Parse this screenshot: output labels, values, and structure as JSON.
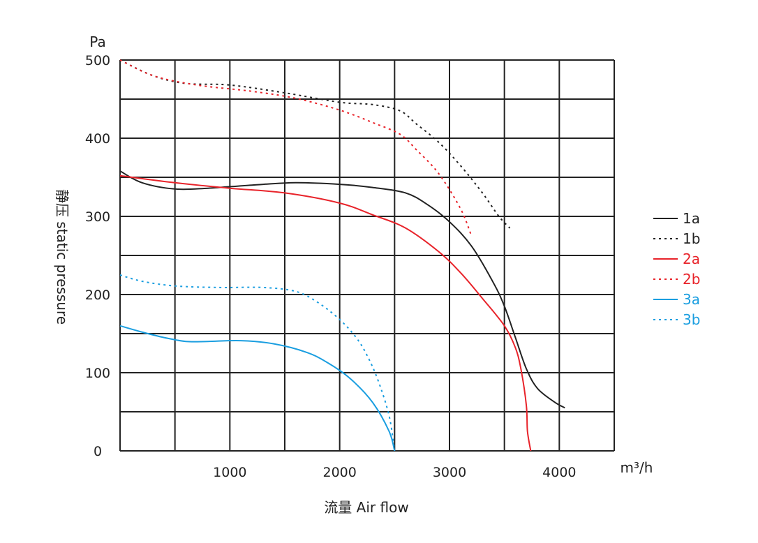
{
  "chart_data": {
    "type": "line",
    "ylabel": "静压 static pressure",
    "yunit": "Pa",
    "xlabel": "流量 Air flow",
    "xunit": "m³/h",
    "xlim": [
      0,
      4500
    ],
    "ylim": [
      0,
      500
    ],
    "xticks": [
      1000,
      2000,
      3000,
      4000
    ],
    "yticks": [
      0,
      100,
      200,
      300,
      400,
      500
    ],
    "grid": true,
    "legend_position": "right",
    "series": [
      {
        "name": "1a",
        "color": "#222222",
        "dash": "solid",
        "points": [
          [
            0,
            358
          ],
          [
            200,
            343
          ],
          [
            500,
            335
          ],
          [
            800,
            336
          ],
          [
            1200,
            340
          ],
          [
            1600,
            343
          ],
          [
            2000,
            341
          ],
          [
            2300,
            337
          ],
          [
            2600,
            330
          ],
          [
            2800,
            315
          ],
          [
            3000,
            293
          ],
          [
            3200,
            262
          ],
          [
            3400,
            215
          ],
          [
            3500,
            185
          ],
          [
            3600,
            145
          ],
          [
            3700,
            105
          ],
          [
            3800,
            80
          ],
          [
            3950,
            63
          ],
          [
            4050,
            55
          ]
        ]
      },
      {
        "name": "1b",
        "color": "#222222",
        "dash": "dotted",
        "points": [
          [
            0,
            500
          ],
          [
            300,
            480
          ],
          [
            600,
            470
          ],
          [
            1000,
            468
          ],
          [
            1500,
            458
          ],
          [
            2000,
            446
          ],
          [
            2300,
            443
          ],
          [
            2550,
            435
          ],
          [
            2700,
            418
          ],
          [
            2900,
            395
          ],
          [
            3100,
            365
          ],
          [
            3300,
            330
          ],
          [
            3450,
            300
          ],
          [
            3550,
            285
          ]
        ]
      },
      {
        "name": "2a",
        "color": "#e8232a",
        "dash": "solid",
        "points": [
          [
            0,
            352
          ],
          [
            500,
            343
          ],
          [
            1000,
            336
          ],
          [
            1500,
            330
          ],
          [
            2000,
            317
          ],
          [
            2300,
            302
          ],
          [
            2600,
            285
          ],
          [
            2900,
            255
          ],
          [
            3100,
            228
          ],
          [
            3300,
            195
          ],
          [
            3500,
            160
          ],
          [
            3600,
            132
          ],
          [
            3650,
            105
          ],
          [
            3700,
            58
          ],
          [
            3710,
            25
          ],
          [
            3740,
            0
          ]
        ]
      },
      {
        "name": "2b",
        "color": "#e8232a",
        "dash": "dotted",
        "points": [
          [
            0,
            500
          ],
          [
            300,
            480
          ],
          [
            700,
            468
          ],
          [
            1200,
            460
          ],
          [
            1600,
            451
          ],
          [
            2000,
            436
          ],
          [
            2300,
            420
          ],
          [
            2550,
            405
          ],
          [
            2700,
            385
          ],
          [
            2900,
            355
          ],
          [
            3100,
            310
          ],
          [
            3200,
            275
          ]
        ]
      },
      {
        "name": "3a",
        "color": "#1a9ee0",
        "dash": "solid",
        "points": [
          [
            0,
            160
          ],
          [
            200,
            152
          ],
          [
            400,
            145
          ],
          [
            600,
            140
          ],
          [
            800,
            140
          ],
          [
            1100,
            141
          ],
          [
            1400,
            137
          ],
          [
            1700,
            126
          ],
          [
            1900,
            112
          ],
          [
            2100,
            92
          ],
          [
            2300,
            62
          ],
          [
            2450,
            25
          ],
          [
            2500,
            0
          ]
        ]
      },
      {
        "name": "3b",
        "color": "#1a9ee0",
        "dash": "dotted",
        "points": [
          [
            0,
            225
          ],
          [
            200,
            217
          ],
          [
            500,
            211
          ],
          [
            900,
            209
          ],
          [
            1300,
            209
          ],
          [
            1600,
            204
          ],
          [
            1800,
            190
          ],
          [
            2000,
            168
          ],
          [
            2150,
            145
          ],
          [
            2250,
            122
          ],
          [
            2350,
            90
          ],
          [
            2450,
            45
          ],
          [
            2500,
            0
          ]
        ]
      }
    ]
  }
}
